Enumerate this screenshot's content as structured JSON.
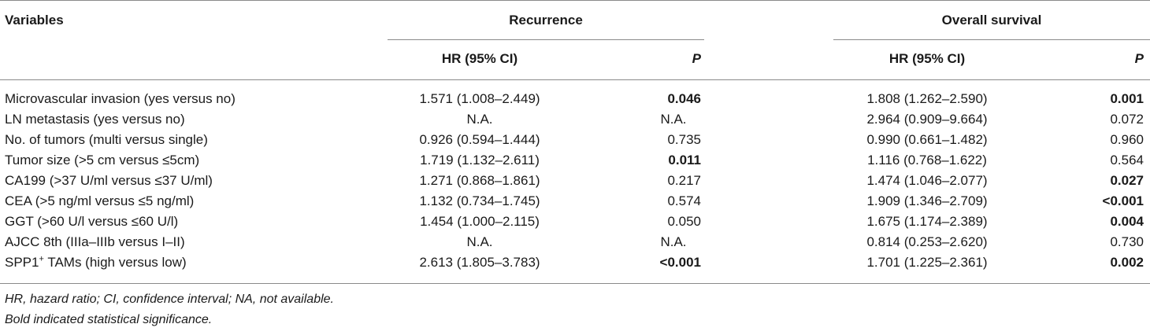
{
  "table": {
    "headers": {
      "variables": "Variables",
      "recurrence": "Recurrence",
      "overall_survival": "Overall survival",
      "hr_ci": "HR (95% CI)",
      "p": "P"
    },
    "rows": [
      {
        "variable": "Microvascular invasion (yes versus no)",
        "rec_hr": "1.571 (1.008–2.449)",
        "rec_p": "0.046",
        "rec_p_bold": true,
        "os_hr": "1.808 (1.262–2.590)",
        "os_p": "0.001",
        "os_p_bold": true
      },
      {
        "variable": "LN metastasis (yes versus no)",
        "rec_hr": "N.A.",
        "rec_p": "N.A.",
        "rec_p_bold": false,
        "os_hr": "2.964 (0.909–9.664)",
        "os_p": "0.072",
        "os_p_bold": false
      },
      {
        "variable": "No. of tumors (multi versus single)",
        "rec_hr": "0.926 (0.594–1.444)",
        "rec_p": "0.735",
        "rec_p_bold": false,
        "os_hr": "0.990 (0.661–1.482)",
        "os_p": "0.960",
        "os_p_bold": false
      },
      {
        "variable": "Tumor size (>5 cm versus ≤5cm)",
        "rec_hr": "1.719 (1.132–2.611)",
        "rec_p": "0.011",
        "rec_p_bold": true,
        "os_hr": "1.116 (0.768–1.622)",
        "os_p": "0.564",
        "os_p_bold": false
      },
      {
        "variable": "CA199 (>37 U/ml versus ≤37 U/ml)",
        "rec_hr": "1.271 (0.868–1.861)",
        "rec_p": "0.217",
        "rec_p_bold": false,
        "os_hr": "1.474 (1.046–2.077)",
        "os_p": "0.027",
        "os_p_bold": true
      },
      {
        "variable": "CEA (>5 ng/ml versus ≤5 ng/ml)",
        "rec_hr": "1.132 (0.734–1.745)",
        "rec_p": "0.574",
        "rec_p_bold": false,
        "os_hr": "1.909 (1.346–2.709)",
        "os_p": "<0.001",
        "os_p_bold": true
      },
      {
        "variable": "GGT (>60 U/l versus ≤60 U/l)",
        "rec_hr": "1.454 (1.000–2.115)",
        "rec_p": "0.050",
        "rec_p_bold": false,
        "os_hr": "1.675 (1.174–2.389)",
        "os_p": "0.004",
        "os_p_bold": true
      },
      {
        "variable": "AJCC 8th (IIIa–IIIb versus I–II)",
        "rec_hr": "N.A.",
        "rec_p": "N.A.",
        "rec_p_bold": false,
        "os_hr": "0.814 (0.253–2.620)",
        "os_p": "0.730",
        "os_p_bold": false
      },
      {
        "variable": "SPP1",
        "variable_sup": "+",
        "variable_rest": " TAMs (high versus low)",
        "rec_hr": "2.613 (1.805–3.783)",
        "rec_p": "<0.001",
        "rec_p_bold": true,
        "os_hr": "1.701 (1.225–2.361)",
        "os_p": "0.002",
        "os_p_bold": true
      }
    ]
  },
  "footnotes": [
    "HR, hazard ratio; CI, confidence interval; NA, not available.",
    "Bold indicated statistical significance."
  ]
}
